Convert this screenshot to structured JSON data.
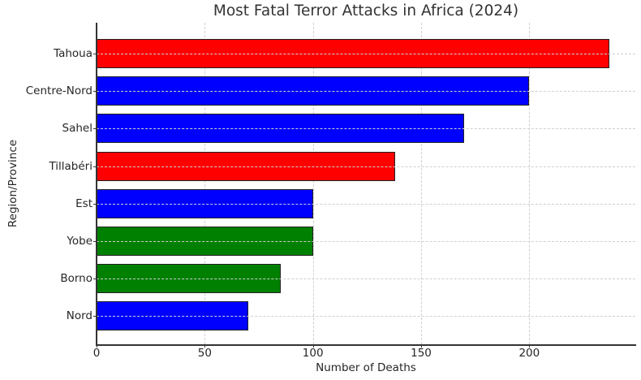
{
  "chart_data": {
    "type": "bar",
    "orientation": "horizontal",
    "title": "Most Fatal Terror Attacks in Africa (2024)",
    "xlabel": "Number of Deaths",
    "ylabel": "Region/Province",
    "categories": [
      "Tahoua",
      "Centre-Nord",
      "Sahel",
      "Tillabéri",
      "Est",
      "Yobe",
      "Borno",
      "Nord"
    ],
    "values": [
      237,
      200,
      170,
      138,
      100,
      100,
      85,
      70
    ],
    "colors": [
      "#ff0000",
      "#0000ff",
      "#0000ff",
      "#ff0000",
      "#0000ff",
      "#008000",
      "#008000",
      "#0000ff"
    ],
    "xlim": [
      0,
      249
    ],
    "xticks": [
      0,
      50,
      100,
      150,
      200
    ],
    "grid": true,
    "legend": null
  }
}
